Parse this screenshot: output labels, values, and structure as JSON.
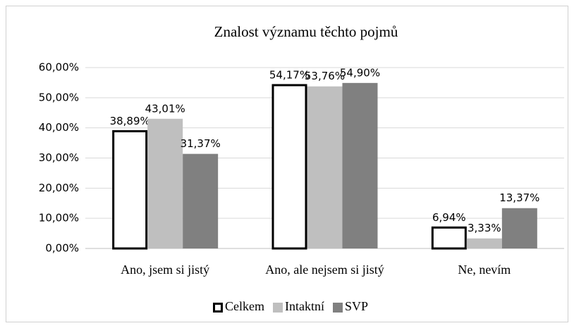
{
  "chart_data": {
    "type": "bar",
    "title": "Znalost významu těchto pojmů",
    "categories": [
      "Ano, jsem si jistý",
      "Ano, ale nejsem si jistý",
      "Ne, nevím"
    ],
    "series": [
      {
        "name": "Celkem",
        "color": "#ffffff",
        "edgecolor": "#000000",
        "values": [
          38.89,
          54.17,
          6.94
        ],
        "value_labels": [
          "38,89%",
          "54,17%",
          "6,94%"
        ]
      },
      {
        "name": "Intaktní",
        "color": "#bfbfbf",
        "values": [
          43.01,
          53.76,
          3.33
        ],
        "value_labels": [
          "43,01%",
          "53,76%",
          "3,33%"
        ]
      },
      {
        "name": "SVP",
        "color": "#808080",
        "values": [
          31.37,
          54.9,
          13.37
        ],
        "value_labels": [
          "31,37%",
          "54,90%",
          "13,37%"
        ]
      }
    ],
    "ylim": [
      0,
      60
    ],
    "yticks": [
      {
        "value": 0,
        "label": "0,00%"
      },
      {
        "value": 10,
        "label": "10,00%"
      },
      {
        "value": 20,
        "label": "20,00%"
      },
      {
        "value": 30,
        "label": "30,00%"
      },
      {
        "value": 40,
        "label": "40,00%"
      },
      {
        "value": 50,
        "label": "50,00%"
      },
      {
        "value": 60,
        "label": "60,00%"
      }
    ],
    "grid": true,
    "legend": "bottom"
  }
}
